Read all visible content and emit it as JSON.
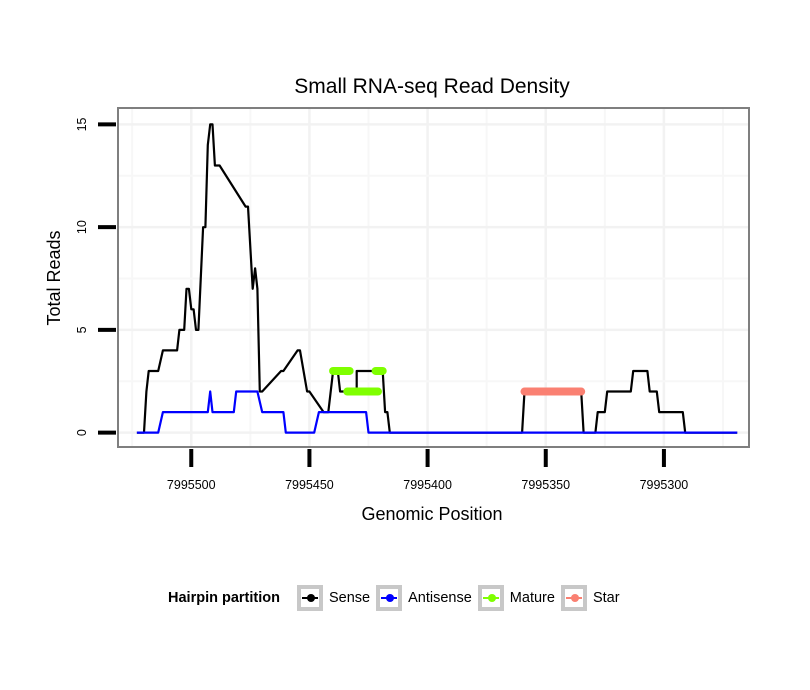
{
  "chart_data": {
    "type": "line",
    "title": "Small RNA-seq Read Density",
    "xlabel": "Genomic Position",
    "ylabel": "Total Reads",
    "x_reversed": true,
    "xlim": [
      7995531,
      7995264
    ],
    "ylim": [
      -0.7,
      15.8
    ],
    "x_ticks": [
      7995500,
      7995450,
      7995400,
      7995350,
      7995300
    ],
    "x_tick_labels": [
      "7995500",
      "7995450",
      "7995400",
      "7995350",
      "7995300"
    ],
    "y_ticks": [
      0,
      5,
      10,
      15
    ],
    "y_tick_labels": [
      "0",
      "5",
      "10",
      "15"
    ],
    "grid": true,
    "legend": {
      "title": "Hairpin partition",
      "placement": "bottom",
      "entries": [
        {
          "name": "Sense",
          "color": "#000000"
        },
        {
          "name": "Antisense",
          "color": "#0000ff"
        },
        {
          "name": "Mature",
          "color": "#7fff00"
        },
        {
          "name": "Star",
          "color": "#fa8072"
        }
      ]
    },
    "series": [
      {
        "name": "Sense",
        "color": "#000000",
        "style": "line",
        "x": [
          7995523,
          7995520,
          7995519,
          7995518,
          7995514,
          7995512,
          7995506,
          7995505,
          7995503,
          7995502,
          7995501,
          7995500,
          7995499,
          7995498,
          7995497,
          7995495,
          7995494,
          7995493,
          7995492,
          7995491,
          7995490,
          7995488,
          7995477,
          7995476,
          7995474,
          7995473,
          7995472,
          7995471,
          7995470,
          7995462,
          7995461,
          7995455,
          7995454,
          7995451,
          7995450,
          7995444,
          7995442,
          7995440,
          7995438,
          7995437,
          7995430,
          7995430,
          7995419,
          7995418,
          7995417,
          7995416,
          7995401,
          7995400,
          7995360,
          7995359,
          7995335,
          7995334,
          7995329,
          7995328,
          7995325,
          7995324,
          7995314,
          7995313,
          7995307,
          7995306,
          7995303,
          7995302,
          7995292,
          7995291,
          7995269
        ],
        "y": [
          0,
          0,
          2,
          3,
          3,
          4,
          4,
          5,
          5,
          7,
          7,
          6,
          6,
          5,
          5,
          10,
          10,
          14,
          15,
          15,
          13,
          13,
          11,
          11,
          7,
          8,
          7,
          2,
          2,
          3,
          3,
          4,
          4,
          2,
          2,
          1,
          1,
          3,
          3,
          2,
          2,
          3,
          3,
          1,
          1,
          0,
          0,
          0,
          0,
          2,
          2,
          0,
          0,
          1,
          1,
          2,
          2,
          3,
          3,
          2,
          2,
          1,
          1,
          0,
          0
        ]
      },
      {
        "name": "Antisense",
        "color": "#0000ff",
        "style": "line",
        "x": [
          7995523,
          7995514,
          7995512,
          7995493,
          7995492,
          7995491,
          7995482,
          7995481,
          7995472,
          7995470,
          7995461,
          7995460,
          7995448,
          7995446,
          7995426,
          7995425,
          7995269
        ],
        "y": [
          0,
          0,
          1,
          1,
          2,
          1,
          1,
          2,
          2,
          1,
          1,
          0,
          0,
          1,
          1,
          0,
          0
        ]
      },
      {
        "name": "Mature",
        "color": "#7fff00",
        "style": "segment",
        "segments": [
          {
            "x_start": 7995440,
            "x_end": 7995433,
            "y": 3
          },
          {
            "x_start": 7995434,
            "x_end": 7995421,
            "y": 2
          },
          {
            "x_start": 7995422,
            "x_end": 7995419,
            "y": 3
          }
        ]
      },
      {
        "name": "Star",
        "color": "#fa8072",
        "style": "segment",
        "segments": [
          {
            "x_start": 7995359,
            "x_end": 7995335,
            "y": 2
          }
        ]
      }
    ]
  }
}
